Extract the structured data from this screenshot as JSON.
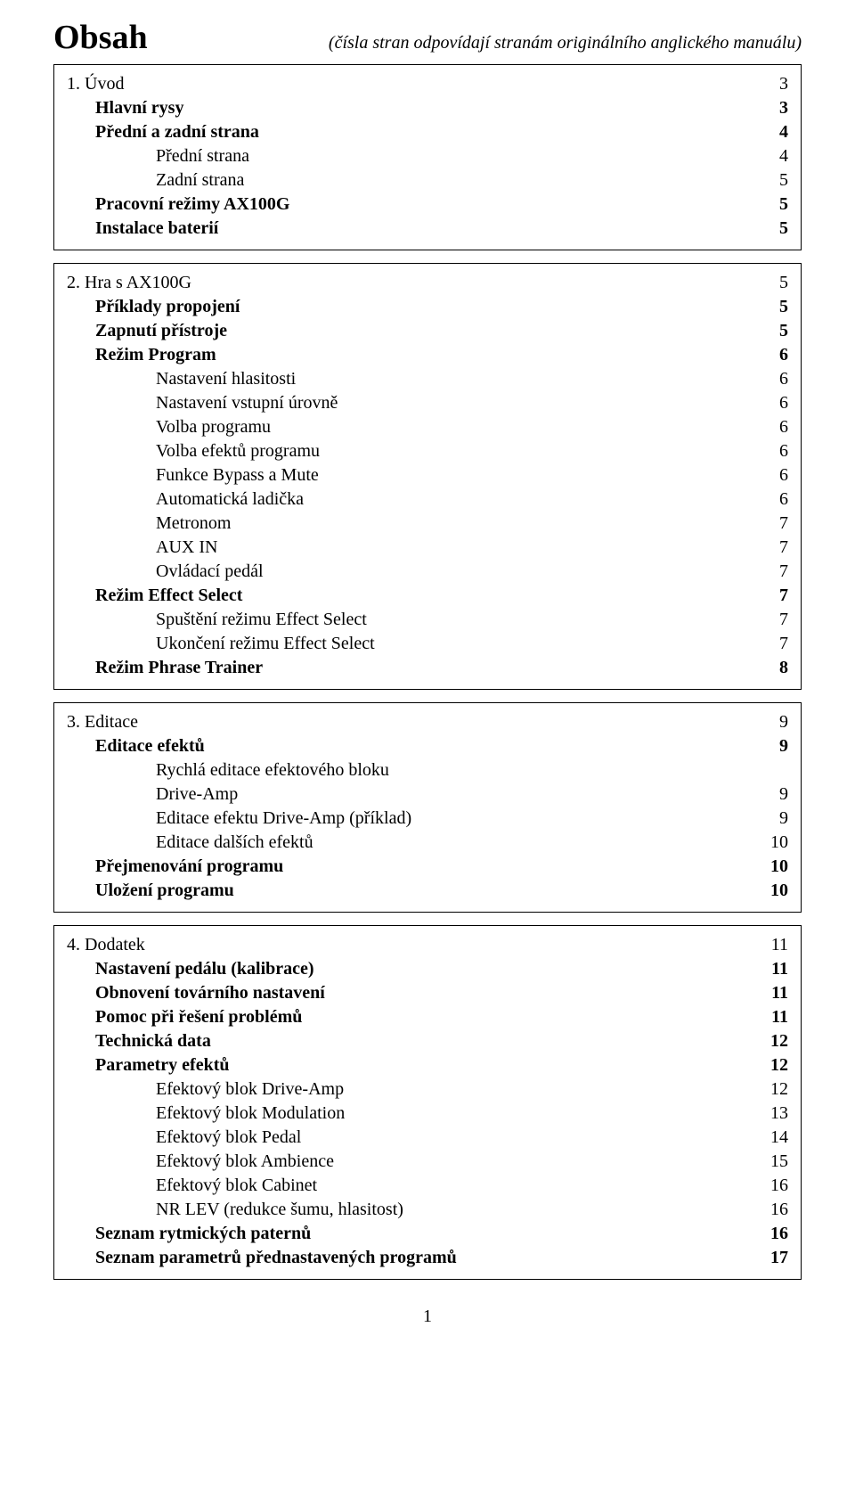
{
  "header": {
    "title": "Obsah",
    "subtitle": "(čísla stran odpovídají stranám originálního anglického manuálu)"
  },
  "blocks": [
    {
      "rows": [
        {
          "label": "1. Úvod",
          "page": "3",
          "indent": 0,
          "bold": false
        },
        {
          "label": "Hlavní rysy",
          "page": "3",
          "indent": 1,
          "bold": true
        },
        {
          "label": "Přední a zadní strana",
          "page": "4",
          "indent": 1,
          "bold": true
        },
        {
          "label": "Přední strana",
          "page": "4",
          "indent": 2,
          "bold": false
        },
        {
          "label": "Zadní strana",
          "page": "5",
          "indent": 2,
          "bold": false
        },
        {
          "label": "Pracovní režimy AX100G",
          "page": "5",
          "indent": 1,
          "bold": true
        },
        {
          "label": "Instalace baterií",
          "page": "5",
          "indent": 1,
          "bold": true
        }
      ]
    },
    {
      "rows": [
        {
          "label": "2. Hra s AX100G",
          "page": "5",
          "indent": 0,
          "bold": false
        },
        {
          "label": "Příklady propojení",
          "page": "5",
          "indent": 1,
          "bold": true
        },
        {
          "label": "Zapnutí přístroje",
          "page": "5",
          "indent": 1,
          "bold": true
        },
        {
          "label": "Režim Program",
          "page": "6",
          "indent": 1,
          "bold": true
        },
        {
          "label": "Nastavení hlasitosti",
          "page": "6",
          "indent": 2,
          "bold": false
        },
        {
          "label": "Nastavení vstupní úrovně",
          "page": "6",
          "indent": 2,
          "bold": false
        },
        {
          "label": "Volba programu",
          "page": "6",
          "indent": 2,
          "bold": false
        },
        {
          "label": "Volba efektů programu",
          "page": "6",
          "indent": 2,
          "bold": false
        },
        {
          "label": "Funkce Bypass a Mute",
          "page": "6",
          "indent": 2,
          "bold": false
        },
        {
          "label": "Automatická ladička",
          "page": "6",
          "indent": 2,
          "bold": false
        },
        {
          "label": "Metronom",
          "page": "7",
          "indent": 2,
          "bold": false
        },
        {
          "label": "AUX IN",
          "page": "7",
          "indent": 2,
          "bold": false
        },
        {
          "label": "Ovládací pedál",
          "page": "7",
          "indent": 2,
          "bold": false
        },
        {
          "label": "Režim Effect Select",
          "page": "7",
          "indent": 1,
          "bold": true
        },
        {
          "label": "Spuštění režimu Effect Select",
          "page": "7",
          "indent": 2,
          "bold": false
        },
        {
          "label": "Ukončení režimu Effect Select",
          "page": "7",
          "indent": 2,
          "bold": false
        },
        {
          "label": "Režim Phrase Trainer",
          "page": "8",
          "indent": 1,
          "bold": true
        }
      ]
    },
    {
      "rows": [
        {
          "label": "3. Editace",
          "page": "9",
          "indent": 0,
          "bold": false
        },
        {
          "label": "Editace efektů",
          "page": "9",
          "indent": 1,
          "bold": true
        },
        {
          "label": "Rychlá editace efektového bloku",
          "page": "",
          "indent": 2,
          "bold": false
        },
        {
          "label": "Drive-Amp",
          "page": "9",
          "indent": 2,
          "bold": false
        },
        {
          "label": "Editace efektu Drive-Amp (příklad)",
          "page": "9",
          "indent": 2,
          "bold": false
        },
        {
          "label": "Editace dalších efektů",
          "page": "10",
          "indent": 2,
          "bold": false
        },
        {
          "label": "Přejmenování programu",
          "page": "10",
          "indent": 1,
          "bold": true
        },
        {
          "label": "Uložení programu",
          "page": "10",
          "indent": 1,
          "bold": true
        }
      ]
    },
    {
      "rows": [
        {
          "label": "4. Dodatek",
          "page": "11",
          "indent": 0,
          "bold": false
        },
        {
          "label": "Nastavení pedálu (kalibrace)",
          "page": "11",
          "indent": 1,
          "bold": true
        },
        {
          "label": "Obnovení továrního nastavení",
          "page": "11",
          "indent": 1,
          "bold": true
        },
        {
          "label": "Pomoc při řešení problémů",
          "page": "11",
          "indent": 1,
          "bold": true
        },
        {
          "label": "Technická data",
          "page": "12",
          "indent": 1,
          "bold": true
        },
        {
          "label": "Parametry efektů",
          "page": "12",
          "indent": 1,
          "bold": true
        },
        {
          "label": "Efektový blok Drive-Amp",
          "page": "12",
          "indent": 2,
          "bold": false
        },
        {
          "label": "Efektový blok Modulation",
          "page": "13",
          "indent": 2,
          "bold": false
        },
        {
          "label": "Efektový blok Pedal",
          "page": "14",
          "indent": 2,
          "bold": false
        },
        {
          "label": "Efektový blok Ambience",
          "page": "15",
          "indent": 2,
          "bold": false
        },
        {
          "label": "Efektový blok Cabinet",
          "page": "16",
          "indent": 2,
          "bold": false
        },
        {
          "label": "NR LEV (redukce šumu, hlasitost)",
          "page": "16",
          "indent": 2,
          "bold": false
        },
        {
          "label": "Seznam rytmických paternů",
          "page": "16",
          "indent": 1,
          "bold": true
        },
        {
          "label": "Seznam parametrů přednastavených programů",
          "page": "17",
          "indent": 1,
          "bold": true
        }
      ]
    }
  ],
  "page_number": "1"
}
